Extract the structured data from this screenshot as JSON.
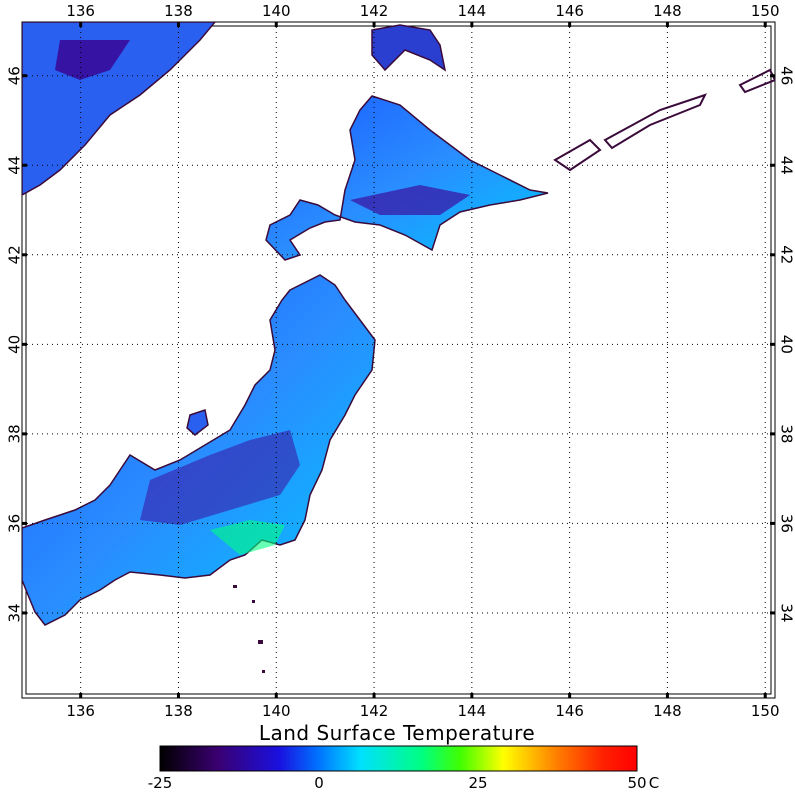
{
  "map": {
    "title": "Land Surface Temperature",
    "extent": {
      "lon_min": 134.8,
      "lon_max": 150.2,
      "lat_min": 32.1,
      "lat_max": 47.2
    },
    "lon_ticks": [
      136,
      138,
      140,
      142,
      144,
      146,
      148,
      150
    ],
    "lat_ticks": [
      34,
      36,
      38,
      40,
      42,
      44,
      46
    ],
    "grid": "dotted",
    "coastline_color": "#3a0a3a"
  },
  "colorbar": {
    "labels": [
      "-25",
      "0",
      "25",
      "50"
    ],
    "unit": "C",
    "range": [
      -25,
      50
    ],
    "colors": [
      "#000000",
      "#3a0070",
      "#1a10e0",
      "#0070ff",
      "#00e0ff",
      "#00ff80",
      "#40ff00",
      "#ffff00",
      "#ff8000",
      "#ff2000",
      "#ff0000"
    ]
  }
}
